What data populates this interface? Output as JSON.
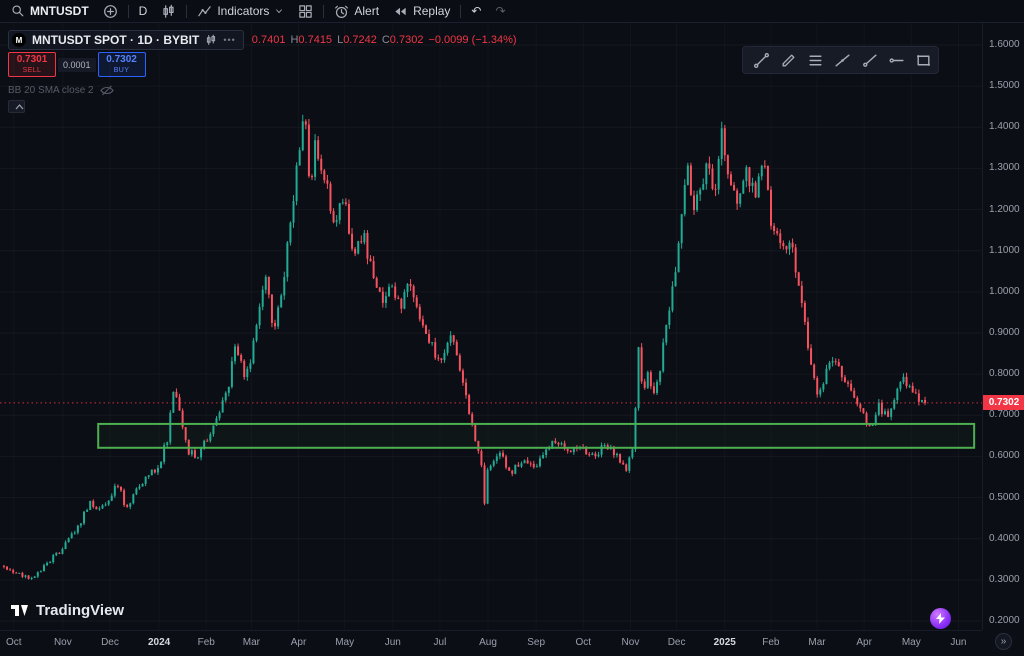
{
  "colors": {
    "up": "#22ab94",
    "down": "#f7525f",
    "sell": "#f23645",
    "buy": "#2962ff",
    "rect": "#4caf50",
    "price_line": "#f23645"
  },
  "top_toolbar": {
    "symbol": "MNTUSDT",
    "interval": "D",
    "indicators_label": "Indicators",
    "alert_label": "Alert",
    "replay_label": "Replay",
    "undo_glyph": "↶",
    "redo_glyph": "↷"
  },
  "legend": {
    "title": "MNTUSDT SPOT · 1D · BYBIT",
    "logo_glyph": "M",
    "menu_dots": "•••",
    "ohlc": {
      "open": "0.7401",
      "high_label": "H",
      "high": "0.7415",
      "low_label": "L",
      "low": "0.7242",
      "close_label": "C",
      "close": "0.7302",
      "change": "−0.0099 (−1.34%)"
    }
  },
  "order_panel": {
    "sell_price": "0.7301",
    "sell_label": "SELL",
    "spread": "0.0001",
    "buy_price": "0.7302",
    "buy_label": "BUY"
  },
  "indicator_legend": {
    "label": "BB 20 SMA close 2"
  },
  "drawing_toolbar": {
    "tools": [
      "trend-line",
      "brush",
      "parallel-channel",
      "extended-line",
      "ray",
      "horizontal-ray",
      "rectangle"
    ]
  },
  "price_axis": {
    "current_price": "0.7302"
  },
  "footer": {
    "logo_text": "TradingView",
    "corner_glyph": "»"
  },
  "chart_data": {
    "type": "candlestick",
    "symbol": "MNTUSDT SPOT",
    "interval": "1D",
    "exchange": "BYBIT",
    "last_ohlc": {
      "open": 0.7401,
      "high": 0.7415,
      "low": 0.7242,
      "close": 0.7302,
      "change": -0.0099,
      "change_pct": -1.34
    },
    "current_price": 0.7302,
    "ylim": [
      0.2,
      1.65
    ],
    "y_ticks": [
      1.6,
      1.5,
      1.4,
      1.3,
      1.2,
      1.1,
      1.0,
      0.9,
      0.8,
      0.7,
      0.6,
      0.5,
      0.4,
      0.3,
      0.2
    ],
    "x_ticks": [
      {
        "label": "Oct",
        "f": 0.014,
        "major": false
      },
      {
        "label": "Nov",
        "f": 0.064,
        "major": false
      },
      {
        "label": "Dec",
        "f": 0.112,
        "major": false
      },
      {
        "label": "2024",
        "f": 0.162,
        "major": true
      },
      {
        "label": "Feb",
        "f": 0.21,
        "major": false
      },
      {
        "label": "Mar",
        "f": 0.256,
        "major": false
      },
      {
        "label": "Apr",
        "f": 0.304,
        "major": false
      },
      {
        "label": "May",
        "f": 0.351,
        "major": false
      },
      {
        "label": "Jun",
        "f": 0.4,
        "major": false
      },
      {
        "label": "Jul",
        "f": 0.448,
        "major": false
      },
      {
        "label": "Aug",
        "f": 0.497,
        "major": false
      },
      {
        "label": "Sep",
        "f": 0.546,
        "major": false
      },
      {
        "label": "Oct",
        "f": 0.594,
        "major": false
      },
      {
        "label": "Nov",
        "f": 0.642,
        "major": false
      },
      {
        "label": "Dec",
        "f": 0.689,
        "major": false
      },
      {
        "label": "2025",
        "f": 0.738,
        "major": true
      },
      {
        "label": "Feb",
        "f": 0.785,
        "major": false
      },
      {
        "label": "Mar",
        "f": 0.832,
        "major": false
      },
      {
        "label": "Apr",
        "f": 0.88,
        "major": false
      },
      {
        "label": "May",
        "f": 0.928,
        "major": false
      },
      {
        "label": "Jun",
        "f": 0.976,
        "major": false
      }
    ],
    "bar_count": 300,
    "f_range": [
      0.004,
      0.942
    ],
    "noise": {
      "seed": 9,
      "close_amp": 0.035,
      "wick_amp": 0.013
    },
    "price_anchors": [
      [
        0.004,
        0.335
      ],
      [
        0.018,
        0.316
      ],
      [
        0.034,
        0.303
      ],
      [
        0.05,
        0.345
      ],
      [
        0.064,
        0.375
      ],
      [
        0.075,
        0.415
      ],
      [
        0.085,
        0.455
      ],
      [
        0.092,
        0.492
      ],
      [
        0.1,
        0.465
      ],
      [
        0.112,
        0.5
      ],
      [
        0.118,
        0.545
      ],
      [
        0.128,
        0.478
      ],
      [
        0.14,
        0.52
      ],
      [
        0.152,
        0.558
      ],
      [
        0.162,
        0.58
      ],
      [
        0.17,
        0.638
      ],
      [
        0.176,
        0.768
      ],
      [
        0.183,
        0.7
      ],
      [
        0.192,
        0.615
      ],
      [
        0.2,
        0.6
      ],
      [
        0.21,
        0.64
      ],
      [
        0.222,
        0.7
      ],
      [
        0.23,
        0.745
      ],
      [
        0.24,
        0.868
      ],
      [
        0.248,
        0.8
      ],
      [
        0.256,
        0.84
      ],
      [
        0.264,
        0.968
      ],
      [
        0.27,
        1.06
      ],
      [
        0.278,
        0.905
      ],
      [
        0.286,
        0.98
      ],
      [
        0.296,
        1.18
      ],
      [
        0.304,
        1.32
      ],
      [
        0.31,
        1.468
      ],
      [
        0.316,
        1.25
      ],
      [
        0.322,
        1.368
      ],
      [
        0.33,
        1.28
      ],
      [
        0.34,
        1.18
      ],
      [
        0.351,
        1.22
      ],
      [
        0.36,
        1.08
      ],
      [
        0.37,
        1.148
      ],
      [
        0.38,
        1.03
      ],
      [
        0.39,
        0.98
      ],
      [
        0.4,
        1.01
      ],
      [
        0.408,
        0.96
      ],
      [
        0.416,
        1.02
      ],
      [
        0.428,
        0.93
      ],
      [
        0.44,
        0.87
      ],
      [
        0.45,
        0.82
      ],
      [
        0.46,
        0.898
      ],
      [
        0.47,
        0.79
      ],
      [
        0.48,
        0.69
      ],
      [
        0.49,
        0.575
      ],
      [
        0.4935,
        0.49
      ],
      [
        0.497,
        0.575
      ],
      [
        0.503,
        0.588
      ],
      [
        0.51,
        0.612
      ],
      [
        0.52,
        0.558
      ],
      [
        0.53,
        0.59
      ],
      [
        0.546,
        0.575
      ],
      [
        0.556,
        0.615
      ],
      [
        0.566,
        0.64
      ],
      [
        0.576,
        0.615
      ],
      [
        0.594,
        0.62
      ],
      [
        0.605,
        0.6
      ],
      [
        0.615,
        0.625
      ],
      [
        0.63,
        0.6
      ],
      [
        0.638,
        0.568
      ],
      [
        0.645,
        0.62
      ],
      [
        0.65,
        0.865
      ],
      [
        0.654,
        0.76
      ],
      [
        0.66,
        0.8
      ],
      [
        0.666,
        0.742
      ],
      [
        0.672,
        0.802
      ],
      [
        0.68,
        0.95
      ],
      [
        0.689,
        1.05
      ],
      [
        0.695,
        1.2
      ],
      [
        0.7,
        1.33
      ],
      [
        0.706,
        1.18
      ],
      [
        0.712,
        1.258
      ],
      [
        0.72,
        1.3
      ],
      [
        0.728,
        1.24
      ],
      [
        0.735,
        1.398
      ],
      [
        0.742,
        1.28
      ],
      [
        0.75,
        1.21
      ],
      [
        0.76,
        1.29
      ],
      [
        0.77,
        1.23
      ],
      [
        0.778,
        1.33
      ],
      [
        0.785,
        1.18
      ],
      [
        0.795,
        1.1
      ],
      [
        0.805,
        1.128
      ],
      [
        0.815,
        1.0
      ],
      [
        0.824,
        0.84
      ],
      [
        0.832,
        0.745
      ],
      [
        0.84,
        0.8
      ],
      [
        0.848,
        0.845
      ],
      [
        0.856,
        0.8
      ],
      [
        0.864,
        0.77
      ],
      [
        0.872,
        0.73
      ],
      [
        0.88,
        0.69
      ],
      [
        0.888,
        0.678
      ],
      [
        0.895,
        0.72
      ],
      [
        0.904,
        0.695
      ],
      [
        0.912,
        0.74
      ],
      [
        0.92,
        0.792
      ],
      [
        0.928,
        0.76
      ],
      [
        0.936,
        0.732
      ],
      [
        0.942,
        0.7302
      ]
    ],
    "price_line": {
      "value": 0.7302,
      "style": "dotted"
    },
    "rectangle_drawing": {
      "f1": 0.1,
      "f2": 0.992,
      "p_top": 0.679,
      "p_bottom": 0.621
    }
  }
}
